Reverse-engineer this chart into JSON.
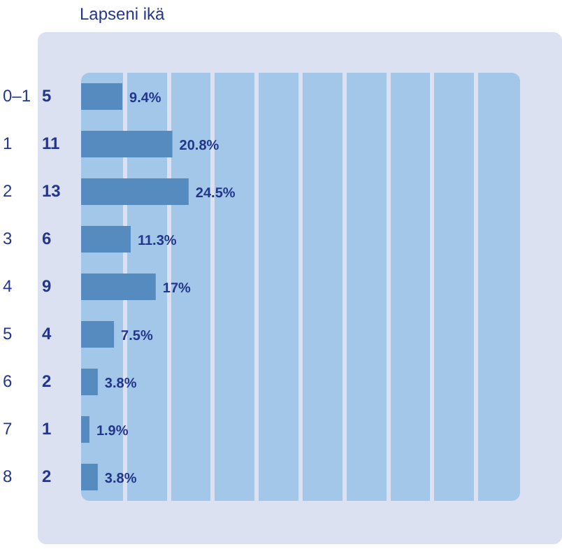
{
  "chart_data": {
    "type": "bar",
    "orientation": "horizontal",
    "title": "Lapseni ikä",
    "categories": [
      "0–1",
      "1",
      "2",
      "3",
      "4",
      "5",
      "6",
      "7",
      "8"
    ],
    "y2_categories": [
      "5",
      "11",
      "13",
      "6",
      "9",
      "4",
      "2",
      "1",
      "2"
    ],
    "values": [
      9.4,
      20.8,
      24.5,
      11.3,
      17,
      7.5,
      3.8,
      1.9,
      3.8
    ],
    "value_labels": [
      "9.4%",
      "20.8%",
      "24.5%",
      "11.3%",
      "17%",
      "7.5%",
      "3.8%",
      "1.9%",
      "3.8%"
    ],
    "color": "#558bbf",
    "xlim": [
      0,
      100
    ],
    "grid": "x",
    "legend": false,
    "tick_labels": false
  }
}
